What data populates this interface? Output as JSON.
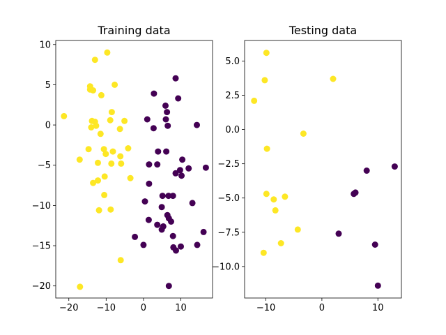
{
  "colors": {
    "class_0": "#440154",
    "class_1": "#fde725"
  },
  "chart_data": [
    {
      "type": "scatter",
      "title": "Training data",
      "xlim": [
        -23.5,
        18.5
      ],
      "ylim": [
        -21.5,
        10.5
      ],
      "xticks": [
        -20,
        -10,
        0,
        10
      ],
      "yticks": [
        -20,
        -15,
        -10,
        -5,
        0,
        5,
        10
      ],
      "grid": false,
      "series": [
        {
          "class": 1,
          "points": [
            [
              -9.7,
              9.0
            ],
            [
              -13.0,
              8.1
            ],
            [
              -21.3,
              1.1
            ],
            [
              -14.3,
              4.8
            ],
            [
              -14.3,
              4.4
            ],
            [
              -13.5,
              4.3
            ],
            [
              -11.3,
              3.7
            ],
            [
              -7.7,
              5.0
            ],
            [
              -13.8,
              0.5
            ],
            [
              -13.0,
              0.4
            ],
            [
              -12.7,
              -0.1
            ],
            [
              -14.0,
              -0.3
            ],
            [
              -8.5,
              1.6
            ],
            [
              -5.1,
              0.5
            ],
            [
              -8.9,
              0.6
            ],
            [
              -6.3,
              -0.5
            ],
            [
              -11.5,
              -1.1
            ],
            [
              -14.7,
              -3.0
            ],
            [
              -10.6,
              -3.0
            ],
            [
              -10.1,
              -3.6
            ],
            [
              -8.2,
              -3.3
            ],
            [
              -4.1,
              -2.9
            ],
            [
              -6.2,
              -3.9
            ],
            [
              -17.1,
              -4.3
            ],
            [
              -12.2,
              -4.7
            ],
            [
              -8.6,
              -4.8
            ],
            [
              -6.0,
              -4.8
            ],
            [
              -10.4,
              -6.4
            ],
            [
              -12.2,
              -6.9
            ],
            [
              -13.5,
              -7.2
            ],
            [
              -3.5,
              -6.6
            ],
            [
              -10.5,
              -8.7
            ],
            [
              -8.8,
              -10.5
            ],
            [
              -11.9,
              -10.6
            ],
            [
              -6.1,
              -16.8
            ],
            [
              -17.0,
              -20.1
            ]
          ]
        },
        {
          "class": 0,
          "points": [
            [
              8.6,
              5.8
            ],
            [
              2.8,
              3.9
            ],
            [
              9.3,
              3.3
            ],
            [
              5.9,
              2.4
            ],
            [
              6.3,
              1.6
            ],
            [
              6.0,
              0.7
            ],
            [
              1.0,
              0.7
            ],
            [
              6.5,
              -0.1
            ],
            [
              14.3,
              0.0
            ],
            [
              2.7,
              -0.4
            ],
            [
              3.9,
              -3.3
            ],
            [
              6.1,
              -3.3
            ],
            [
              10.4,
              -4.3
            ],
            [
              1.5,
              -4.9
            ],
            [
              3.7,
              -4.9
            ],
            [
              12.1,
              -5.4
            ],
            [
              16.7,
              -5.3
            ],
            [
              9.8,
              -5.6
            ],
            [
              8.6,
              -6.0
            ],
            [
              10.2,
              -6.3
            ],
            [
              1.5,
              -7.3
            ],
            [
              5.1,
              -8.8
            ],
            [
              6.7,
              -8.8
            ],
            [
              7.9,
              -8.8
            ],
            [
              0.4,
              -9.5
            ],
            [
              13.1,
              -9.7
            ],
            [
              4.9,
              -10.2
            ],
            [
              6.4,
              -11.2
            ],
            [
              6.8,
              -11.6
            ],
            [
              1.4,
              -11.8
            ],
            [
              7.4,
              -12.0
            ],
            [
              3.7,
              -12.4
            ],
            [
              5.3,
              -12.6
            ],
            [
              4.9,
              -13.0
            ],
            [
              16.1,
              -13.3
            ],
            [
              -2.3,
              -13.9
            ],
            [
              7.9,
              -13.8
            ],
            [
              0.0,
              -14.9
            ],
            [
              14.4,
              -14.9
            ],
            [
              10.0,
              -15.1
            ],
            [
              8.0,
              -15.2
            ],
            [
              8.7,
              -15.6
            ],
            [
              6.8,
              -20.0
            ]
          ]
        }
      ]
    },
    {
      "type": "scatter",
      "title": "Testing data",
      "xlim": [
        -13.8,
        14.2
      ],
      "ylim": [
        -12.3,
        6.5
      ],
      "xticks": [
        -10,
        0,
        10
      ],
      "yticks": [
        -10.0,
        -7.5,
        -5.0,
        -2.5,
        0.0,
        2.5,
        5.0
      ],
      "ytick_labels": [
        "−10.0",
        "−7.5",
        "−5.0",
        "−2.5",
        "0.0",
        "2.5",
        "5.0"
      ],
      "grid": false,
      "series": [
        {
          "class": 1,
          "points": [
            [
              -9.9,
              5.6
            ],
            [
              -10.2,
              3.6
            ],
            [
              2.0,
              3.7
            ],
            [
              -12.1,
              2.1
            ],
            [
              -3.3,
              -0.3
            ],
            [
              -9.8,
              -1.4
            ],
            [
              -9.9,
              -4.7
            ],
            [
              -6.6,
              -4.9
            ],
            [
              -8.6,
              -5.1
            ],
            [
              -8.3,
              -5.9
            ],
            [
              -4.3,
              -7.3
            ],
            [
              -7.3,
              -8.3
            ],
            [
              -10.4,
              -9.0
            ]
          ]
        },
        {
          "class": 0,
          "points": [
            [
              13.0,
              -2.7
            ],
            [
              8.0,
              -3.0
            ],
            [
              5.7,
              -4.7
            ],
            [
              6.0,
              -4.6
            ],
            [
              3.0,
              -7.6
            ],
            [
              9.5,
              -8.4
            ],
            [
              10.0,
              -11.4
            ]
          ]
        }
      ]
    }
  ]
}
